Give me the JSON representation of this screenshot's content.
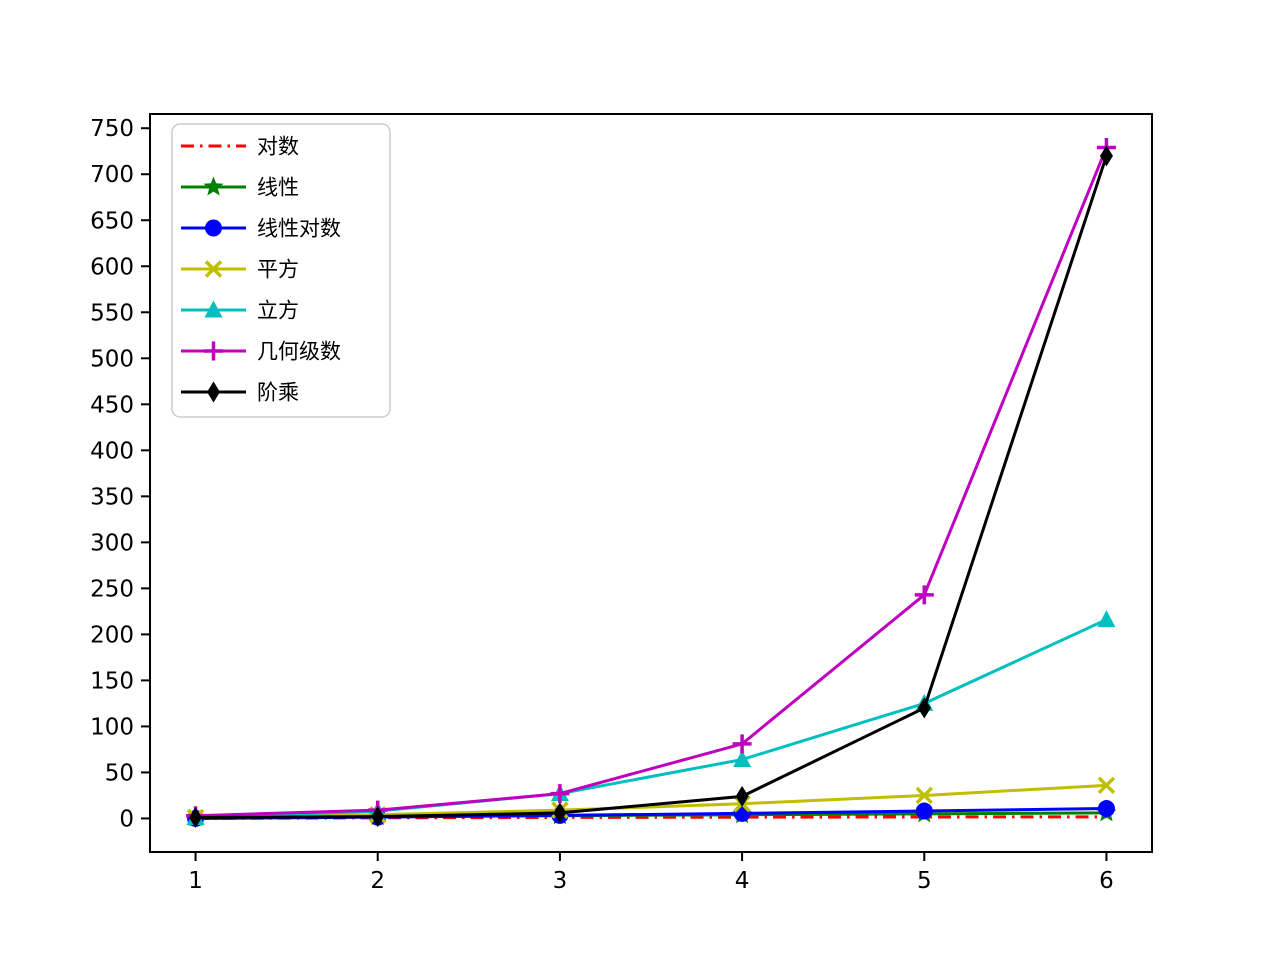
{
  "figure": {
    "background": "#ffffff"
  },
  "chart_data": {
    "type": "line",
    "title": "",
    "xlabel": "",
    "ylabel": "",
    "grid": false,
    "x": [
      1,
      2,
      3,
      4,
      5,
      6
    ],
    "xticks": [
      "1",
      "2",
      "3",
      "4",
      "5",
      "6"
    ],
    "yticks": [
      "0",
      "50",
      "100",
      "150",
      "200",
      "250",
      "300",
      "350",
      "400",
      "450",
      "500",
      "550",
      "600",
      "650",
      "700",
      "750"
    ],
    "ytick_values": [
      0,
      50,
      100,
      150,
      200,
      250,
      300,
      350,
      400,
      450,
      500,
      550,
      600,
      650,
      700,
      750
    ],
    "xtick_values": [
      1,
      2,
      3,
      4,
      5,
      6
    ],
    "xlim": [
      0.75,
      6.25
    ],
    "ylim": [
      -36.45,
      765.45
    ],
    "legend": {
      "position": "upper-left",
      "border_color": "#cccccc",
      "fill": "#ffffff"
    },
    "series": [
      {
        "slug": "log",
        "name": "对数",
        "color": "#ff0000",
        "linestyle": "dashdot",
        "marker": "none",
        "values": [
          0,
          0.693,
          1.099,
          1.386,
          1.609,
          1.792
        ]
      },
      {
        "slug": "linear",
        "name": "线性",
        "color": "#008000",
        "linestyle": "solid",
        "marker": "star",
        "values": [
          1,
          2,
          3,
          4,
          5,
          6
        ]
      },
      {
        "slug": "linlog",
        "name": "线性对数",
        "color": "#0000ff",
        "linestyle": "solid",
        "marker": "circle",
        "values": [
          0,
          1.386,
          3.296,
          5.545,
          8.047,
          10.751
        ]
      },
      {
        "slug": "square",
        "name": "平方",
        "color": "#bfbf00",
        "linestyle": "solid",
        "marker": "x",
        "values": [
          1,
          4,
          9,
          16,
          25,
          36
        ]
      },
      {
        "slug": "cube",
        "name": "立方",
        "color": "#00bfbf",
        "linestyle": "solid",
        "marker": "triangle-up",
        "values": [
          1,
          8,
          27,
          64,
          125,
          216
        ]
      },
      {
        "slug": "geometric",
        "name": "几何级数",
        "color": "#bf00bf",
        "linestyle": "solid",
        "marker": "plus",
        "values": [
          3,
          9,
          27,
          81,
          243,
          729
        ]
      },
      {
        "slug": "factorial",
        "name": "阶乘",
        "color": "#000000",
        "linestyle": "solid",
        "marker": "thin-diamond",
        "values": [
          1,
          2,
          6,
          24,
          120,
          720
        ]
      }
    ]
  }
}
